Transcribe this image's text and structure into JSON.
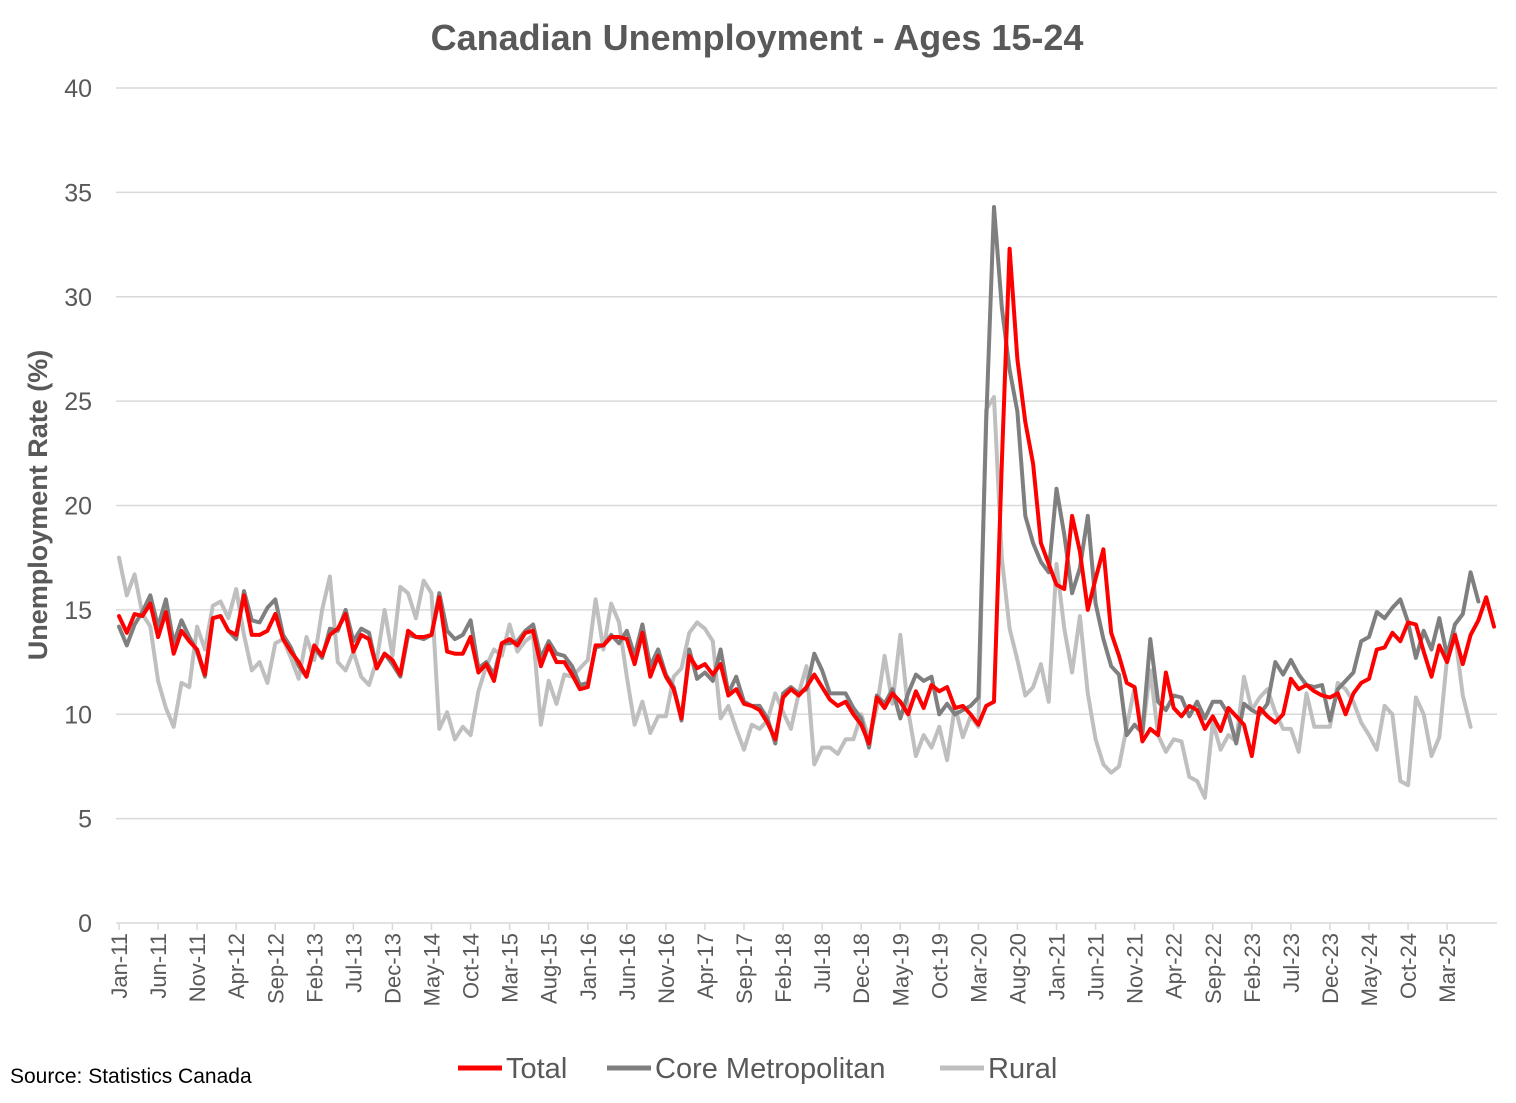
{
  "chart_data": {
    "type": "line",
    "title": "Canadian Unemployment  - Ages 15-24",
    "ylabel": "Unemployment Rate (%)",
    "xlabel": "",
    "ylim": [
      0,
      40
    ],
    "yticks": [
      "0",
      "5",
      "10",
      "15",
      "20",
      "25",
      "30",
      "35",
      "40"
    ],
    "grid": true,
    "legend_position": "bottom",
    "source": "Source: Statistics Canada",
    "start_month": "Jan-11",
    "x_tick_labels": [
      "Jan-11",
      "Jun-11",
      "Nov-11",
      "Apr-12",
      "Sep-12",
      "Feb-13",
      "Jul-13",
      "Dec-13",
      "May-14",
      "Oct-14",
      "Mar-15",
      "Aug-15",
      "Jan-16",
      "Jun-16",
      "Nov-16",
      "Apr-17",
      "Sep-17",
      "Feb-18",
      "Jul-18",
      "Dec-18",
      "May-19",
      "Oct-19",
      "Mar-20",
      "Aug-20",
      "Jan-21",
      "Jun-21",
      "Nov-21",
      "Apr-22",
      "Sep-22",
      "Feb-23",
      "Jul-23",
      "Dec-23",
      "May-24",
      "Oct-24",
      "Mar-25"
    ],
    "series": [
      {
        "name": "Total",
        "color": "#ff0000",
        "values": [
          14.7,
          13.9,
          14.8,
          14.7,
          15.3,
          13.7,
          14.9,
          12.9,
          14.0,
          13.5,
          13.1,
          11.9,
          14.6,
          14.7,
          14.0,
          13.8,
          15.7,
          13.8,
          13.8,
          14.0,
          14.8,
          13.6,
          13.0,
          12.5,
          11.8,
          13.3,
          12.8,
          13.8,
          14.1,
          14.8,
          13.0,
          13.8,
          13.6,
          12.2,
          12.9,
          12.6,
          11.9,
          14.0,
          13.7,
          13.7,
          13.8,
          15.6,
          13.0,
          12.9,
          12.9,
          13.7,
          12.0,
          12.4,
          11.6,
          13.4,
          13.6,
          13.3,
          13.9,
          14.0,
          12.3,
          13.3,
          12.5,
          12.5,
          11.9,
          11.2,
          11.3,
          13.3,
          13.3,
          13.7,
          13.7,
          13.6,
          12.4,
          13.9,
          11.8,
          12.8,
          11.8,
          11.2,
          9.8,
          12.8,
          12.2,
          12.4,
          11.9,
          12.4,
          10.9,
          11.2,
          10.5,
          10.4,
          10.2,
          9.6,
          8.8,
          10.8,
          11.2,
          10.9,
          11.3,
          11.9,
          11.3,
          10.7,
          10.4,
          10.6,
          10.0,
          9.5,
          8.6,
          10.8,
          10.3,
          11.0,
          10.6,
          10.0,
          11.1,
          10.3,
          11.4,
          11.1,
          11.3,
          10.3,
          10.4,
          10.0,
          9.5,
          10.4,
          10.6,
          22.0,
          32.3,
          27.0,
          24.0,
          22.0,
          18.2,
          17.2,
          16.2,
          16.0,
          19.5,
          17.8,
          15.0,
          16.5,
          17.9,
          13.9,
          12.8,
          11.5,
          11.3,
          8.7,
          9.3,
          9.0,
          12.0,
          10.3,
          9.9,
          10.4,
          10.2,
          9.3,
          9.9,
          9.2,
          10.3,
          9.9,
          9.5,
          8.0,
          10.3,
          9.9,
          9.6,
          10.0,
          11.7,
          11.2,
          11.4,
          11.1,
          10.9,
          10.8,
          11.0,
          10.0,
          11.0,
          11.5,
          11.7,
          13.1,
          13.2,
          13.9,
          13.5,
          14.4,
          14.3,
          13.0,
          11.8,
          13.3,
          12.5,
          13.8,
          12.4,
          13.8,
          14.5,
          15.6,
          14.2
        ]
      },
      {
        "name": "Core Metropolitan",
        "color": "#7f7f7f",
        "values": [
          14.2,
          13.3,
          14.3,
          14.9,
          15.7,
          14.2,
          15.5,
          13.4,
          14.5,
          13.7,
          13.0,
          11.8,
          14.6,
          14.7,
          14.0,
          13.6,
          15.9,
          14.5,
          14.4,
          15.1,
          15.5,
          13.8,
          13.2,
          12.3,
          11.8,
          13.2,
          12.7,
          14.1,
          14.0,
          15.0,
          13.5,
          14.1,
          13.9,
          12.2,
          12.9,
          12.4,
          11.8,
          13.8,
          13.7,
          13.6,
          13.8,
          15.8,
          14.0,
          13.6,
          13.8,
          14.5,
          12.2,
          12.5,
          11.9,
          13.4,
          13.4,
          13.5,
          14.0,
          14.3,
          12.7,
          13.5,
          12.9,
          12.8,
          12.3,
          11.4,
          11.5,
          13.2,
          13.3,
          13.8,
          13.4,
          14.0,
          12.8,
          14.3,
          12.3,
          13.1,
          11.9,
          11.3,
          9.7,
          13.1,
          11.7,
          12.0,
          11.6,
          13.1,
          11.0,
          11.8,
          10.6,
          10.4,
          10.4,
          9.8,
          8.6,
          11.0,
          11.3,
          11.0,
          11.2,
          12.9,
          12.1,
          11.0,
          11.0,
          11.0,
          10.3,
          9.8,
          8.4,
          10.9,
          10.5,
          11.2,
          9.8,
          11.0,
          11.9,
          11.6,
          11.8,
          10.0,
          10.5,
          10.0,
          10.2,
          10.4,
          10.8,
          24.0,
          34.3,
          29.5,
          26.5,
          24.5,
          19.5,
          18.2,
          17.3,
          16.8,
          20.8,
          18.6,
          15.8,
          17.0,
          19.5,
          15.3,
          13.6,
          12.3,
          11.9,
          9.0,
          9.5,
          9.1,
          13.6,
          10.6,
          10.2,
          10.9,
          10.8,
          9.9,
          10.6,
          9.8,
          10.6,
          10.6,
          10.0,
          8.6,
          10.5,
          10.2,
          10.0,
          10.5,
          12.5,
          11.9,
          12.6,
          11.9,
          11.4,
          11.3,
          11.4,
          9.7,
          11.2,
          11.6,
          12.0,
          13.5,
          13.7,
          14.9,
          14.6,
          15.1,
          15.5,
          14.4,
          12.7,
          14.0,
          13.1,
          14.6,
          12.8,
          14.3,
          14.8,
          16.8,
          15.4
        ]
      },
      {
        "name": "Rural",
        "color": "#bfbfbf",
        "values": [
          17.5,
          15.7,
          16.7,
          14.8,
          14.2,
          11.6,
          10.3,
          9.4,
          11.5,
          11.3,
          14.2,
          13.1,
          15.2,
          15.4,
          14.6,
          16.0,
          13.8,
          12.1,
          12.5,
          11.5,
          13.4,
          13.6,
          12.7,
          11.7,
          13.7,
          12.6,
          15.0,
          16.6,
          12.5,
          12.1,
          13.0,
          11.8,
          11.4,
          12.6,
          15.0,
          12.8,
          16.1,
          15.8,
          14.6,
          16.4,
          15.8,
          9.3,
          10.1,
          8.8,
          9.4,
          9.0,
          11.1,
          12.3,
          13.1,
          12.8,
          14.3,
          13.0,
          13.5,
          13.8,
          9.5,
          11.6,
          10.5,
          11.9,
          11.8,
          12.2,
          12.6,
          15.5,
          13.1,
          15.3,
          14.4,
          11.8,
          9.5,
          10.6,
          9.1,
          9.9,
          9.9,
          11.8,
          12.2,
          13.9,
          14.4,
          14.1,
          13.5,
          9.8,
          10.4,
          9.3,
          8.3,
          9.5,
          9.3,
          9.7,
          11.0,
          10.1,
          9.3,
          11.0,
          12.3,
          7.6,
          8.4,
          8.4,
          8.1,
          8.8,
          8.8,
          10.0,
          8.8,
          10.3,
          12.8,
          10.5,
          13.8,
          10.2,
          8.0,
          9.0,
          8.4,
          9.4,
          7.8,
          10.4,
          8.9,
          9.9,
          9.4,
          24.6,
          25.2,
          17.5,
          14.1,
          12.6,
          10.9,
          11.3,
          12.4,
          10.6,
          17.2,
          14.1,
          12.0,
          14.7,
          11.0,
          8.8,
          7.6,
          7.2,
          7.5,
          9.4,
          11.3,
          9.1,
          12.1,
          9.0,
          8.2,
          8.8,
          8.7,
          7.0,
          6.8,
          6.0,
          9.6,
          8.3,
          9.0,
          8.7,
          11.8,
          10.2,
          10.8,
          11.2,
          10.1,
          9.3,
          9.3,
          8.2,
          11.0,
          9.4,
          9.4,
          9.4,
          11.5,
          11.2,
          10.6,
          9.6,
          9.0,
          8.3,
          10.4,
          10.0,
          6.8,
          6.6,
          10.8,
          10.0,
          8.0,
          8.9,
          12.7,
          13.9,
          10.9,
          9.4
        ]
      }
    ]
  }
}
